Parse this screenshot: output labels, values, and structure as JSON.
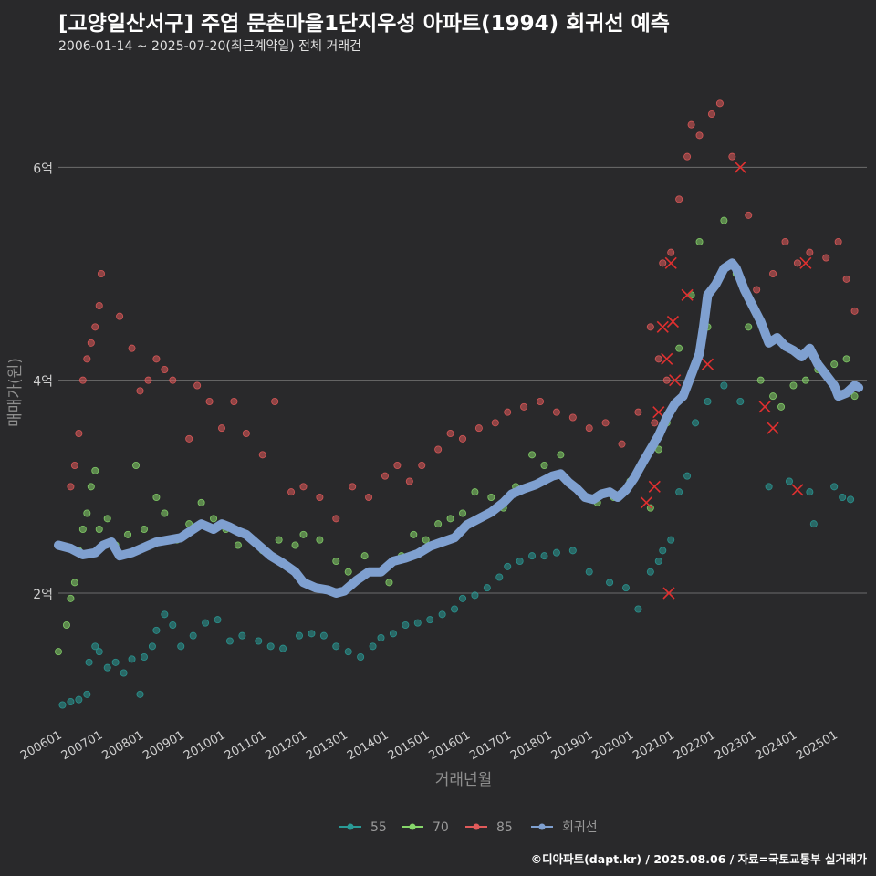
{
  "header": {
    "title": "[고양일산서구] 주엽 문촌마을1단지우성 아파트(1994) 회귀선 예측",
    "subtitle": "2006-01-14 ~ 2025-07-20(최근계약일) 전체 거래건"
  },
  "footer": {
    "credit": "©디아파트(dapt.kr) / 2025.08.06 / 자료=국토교통부 실거래가"
  },
  "chart_data": {
    "type": "scatter",
    "xlabel": "거래년월",
    "ylabel": "매매가(원)",
    "x_ticks": [
      "200601",
      "200701",
      "200801",
      "200901",
      "201001",
      "201101",
      "201201",
      "201301",
      "201401",
      "201501",
      "201601",
      "201701",
      "201801",
      "201901",
      "202001",
      "202101",
      "202201",
      "202301",
      "202401",
      "202501"
    ],
    "y_ticks": [
      {
        "value": 2,
        "label": "2억"
      },
      {
        "value": 4,
        "label": "4억"
      },
      {
        "value": 6,
        "label": "6억"
      }
    ],
    "xlim": [
      2006.0,
      2025.8
    ],
    "ylim": [
      0.8,
      6.8
    ],
    "grid": "horizontal",
    "legend_position": "bottom",
    "colors": {
      "55": "#2a9a96",
      "70": "#86d66a",
      "85": "#e05a5a",
      "회귀선": "#7fa0d0"
    },
    "series": [
      {
        "name": "55",
        "points": [
          [
            2006.1,
            0.95
          ],
          [
            2006.3,
            0.98
          ],
          [
            2006.5,
            1.0
          ],
          [
            2006.7,
            1.05
          ],
          [
            2006.75,
            1.35
          ],
          [
            2006.9,
            1.5
          ],
          [
            2007.0,
            1.45
          ],
          [
            2007.2,
            1.3
          ],
          [
            2007.4,
            1.35
          ],
          [
            2007.6,
            1.25
          ],
          [
            2007.8,
            1.38
          ],
          [
            2008.0,
            1.05
          ],
          [
            2008.1,
            1.4
          ],
          [
            2008.3,
            1.5
          ],
          [
            2008.4,
            1.65
          ],
          [
            2008.6,
            1.8
          ],
          [
            2008.8,
            1.7
          ],
          [
            2009.0,
            1.5
          ],
          [
            2009.3,
            1.6
          ],
          [
            2009.6,
            1.72
          ],
          [
            2009.9,
            1.75
          ],
          [
            2010.2,
            1.55
          ],
          [
            2010.5,
            1.6
          ],
          [
            2010.9,
            1.55
          ],
          [
            2011.2,
            1.5
          ],
          [
            2011.5,
            1.48
          ],
          [
            2011.9,
            1.6
          ],
          [
            2012.2,
            1.62
          ],
          [
            2012.5,
            1.6
          ],
          [
            2012.8,
            1.5
          ],
          [
            2013.1,
            1.45
          ],
          [
            2013.4,
            1.4
          ],
          [
            2013.7,
            1.5
          ],
          [
            2013.9,
            1.58
          ],
          [
            2014.2,
            1.62
          ],
          [
            2014.5,
            1.7
          ],
          [
            2014.8,
            1.72
          ],
          [
            2015.1,
            1.75
          ],
          [
            2015.4,
            1.8
          ],
          [
            2015.7,
            1.85
          ],
          [
            2015.9,
            1.95
          ],
          [
            2016.2,
            1.98
          ],
          [
            2016.5,
            2.05
          ],
          [
            2016.8,
            2.15
          ],
          [
            2017.0,
            2.25
          ],
          [
            2017.3,
            2.3
          ],
          [
            2017.6,
            2.35
          ],
          [
            2017.9,
            2.35
          ],
          [
            2018.2,
            2.38
          ],
          [
            2018.6,
            2.4
          ],
          [
            2019.0,
            2.2
          ],
          [
            2019.5,
            2.1
          ],
          [
            2019.9,
            2.05
          ],
          [
            2020.2,
            1.85
          ],
          [
            2020.5,
            2.2
          ],
          [
            2020.7,
            2.3
          ],
          [
            2020.8,
            2.4
          ],
          [
            2021.0,
            2.5
          ],
          [
            2021.2,
            2.95
          ],
          [
            2021.4,
            3.1
          ],
          [
            2021.6,
            3.6
          ],
          [
            2021.9,
            3.8
          ],
          [
            2022.3,
            3.95
          ],
          [
            2022.7,
            3.8
          ],
          [
            2023.4,
            3.0
          ],
          [
            2023.9,
            3.05
          ],
          [
            2024.4,
            2.95
          ],
          [
            2024.5,
            2.65
          ],
          [
            2025.0,
            3.0
          ],
          [
            2025.2,
            2.9
          ],
          [
            2025.4,
            2.88
          ]
        ]
      },
      {
        "name": "70",
        "points": [
          [
            2006.0,
            1.45
          ],
          [
            2006.2,
            1.7
          ],
          [
            2006.3,
            1.95
          ],
          [
            2006.4,
            2.1
          ],
          [
            2006.5,
            2.4
          ],
          [
            2006.6,
            2.6
          ],
          [
            2006.7,
            2.75
          ],
          [
            2006.8,
            3.0
          ],
          [
            2006.9,
            3.15
          ],
          [
            2007.0,
            2.6
          ],
          [
            2007.2,
            2.7
          ],
          [
            2007.4,
            2.45
          ],
          [
            2007.7,
            2.55
          ],
          [
            2007.9,
            3.2
          ],
          [
            2008.1,
            2.6
          ],
          [
            2008.4,
            2.9
          ],
          [
            2008.6,
            2.75
          ],
          [
            2008.9,
            2.5
          ],
          [
            2009.2,
            2.65
          ],
          [
            2009.5,
            2.85
          ],
          [
            2009.8,
            2.7
          ],
          [
            2010.1,
            2.6
          ],
          [
            2010.4,
            2.45
          ],
          [
            2011.0,
            2.4
          ],
          [
            2011.4,
            2.5
          ],
          [
            2011.8,
            2.45
          ],
          [
            2012.0,
            2.55
          ],
          [
            2012.4,
            2.5
          ],
          [
            2012.8,
            2.3
          ],
          [
            2013.1,
            2.2
          ],
          [
            2013.5,
            2.35
          ],
          [
            2013.8,
            2.2
          ],
          [
            2014.1,
            2.1
          ],
          [
            2014.4,
            2.35
          ],
          [
            2014.7,
            2.55
          ],
          [
            2015.0,
            2.5
          ],
          [
            2015.3,
            2.65
          ],
          [
            2015.6,
            2.7
          ],
          [
            2015.9,
            2.75
          ],
          [
            2016.2,
            2.95
          ],
          [
            2016.6,
            2.9
          ],
          [
            2016.9,
            2.8
          ],
          [
            2017.2,
            3.0
          ],
          [
            2017.6,
            3.3
          ],
          [
            2017.9,
            3.2
          ],
          [
            2018.3,
            3.3
          ],
          [
            2018.8,
            2.95
          ],
          [
            2019.2,
            2.85
          ],
          [
            2019.6,
            2.9
          ],
          [
            2020.0,
            3.05
          ],
          [
            2020.3,
            3.2
          ],
          [
            2020.5,
            2.8
          ],
          [
            2020.7,
            3.35
          ],
          [
            2020.9,
            3.6
          ],
          [
            2021.2,
            4.3
          ],
          [
            2021.5,
            4.8
          ],
          [
            2021.7,
            5.3
          ],
          [
            2021.9,
            4.5
          ],
          [
            2022.3,
            5.5
          ],
          [
            2022.6,
            5.0
          ],
          [
            2022.9,
            4.5
          ],
          [
            2023.2,
            4.0
          ],
          [
            2023.5,
            3.85
          ],
          [
            2023.7,
            3.75
          ],
          [
            2024.0,
            3.95
          ],
          [
            2024.3,
            4.0
          ],
          [
            2024.6,
            4.1
          ],
          [
            2025.0,
            4.15
          ],
          [
            2025.3,
            4.2
          ],
          [
            2025.5,
            3.85
          ]
        ]
      },
      {
        "name": "85",
        "points": [
          [
            2006.3,
            3.0
          ],
          [
            2006.4,
            3.2
          ],
          [
            2006.5,
            3.5
          ],
          [
            2006.6,
            4.0
          ],
          [
            2006.7,
            4.2
          ],
          [
            2006.8,
            4.35
          ],
          [
            2006.9,
            4.5
          ],
          [
            2007.0,
            4.7
          ],
          [
            2007.05,
            5.0
          ],
          [
            2007.5,
            4.6
          ],
          [
            2007.8,
            4.3
          ],
          [
            2008.0,
            3.9
          ],
          [
            2008.2,
            4.0
          ],
          [
            2008.4,
            4.2
          ],
          [
            2008.6,
            4.1
          ],
          [
            2008.8,
            4.0
          ],
          [
            2009.2,
            3.45
          ],
          [
            2009.4,
            3.95
          ],
          [
            2009.7,
            3.8
          ],
          [
            2010.0,
            3.55
          ],
          [
            2010.3,
            3.8
          ],
          [
            2010.6,
            3.5
          ],
          [
            2011.0,
            3.3
          ],
          [
            2011.3,
            3.8
          ],
          [
            2011.7,
            2.95
          ],
          [
            2012.0,
            3.0
          ],
          [
            2012.4,
            2.9
          ],
          [
            2012.8,
            2.7
          ],
          [
            2013.2,
            3.0
          ],
          [
            2013.6,
            2.9
          ],
          [
            2014.0,
            3.1
          ],
          [
            2014.3,
            3.2
          ],
          [
            2014.6,
            3.05
          ],
          [
            2014.9,
            3.2
          ],
          [
            2015.3,
            3.35
          ],
          [
            2015.6,
            3.5
          ],
          [
            2015.9,
            3.45
          ],
          [
            2016.3,
            3.55
          ],
          [
            2016.7,
            3.6
          ],
          [
            2017.0,
            3.7
          ],
          [
            2017.4,
            3.75
          ],
          [
            2017.8,
            3.8
          ],
          [
            2018.2,
            3.7
          ],
          [
            2018.6,
            3.65
          ],
          [
            2019.0,
            3.55
          ],
          [
            2019.4,
            3.6
          ],
          [
            2019.8,
            3.4
          ],
          [
            2020.2,
            3.7
          ],
          [
            2020.5,
            4.5
          ],
          [
            2020.6,
            3.6
          ],
          [
            2020.7,
            4.2
          ],
          [
            2020.8,
            5.1
          ],
          [
            2020.9,
            4.0
          ],
          [
            2021.0,
            5.2
          ],
          [
            2021.2,
            5.7
          ],
          [
            2021.4,
            6.1
          ],
          [
            2021.5,
            6.4
          ],
          [
            2021.7,
            6.3
          ],
          [
            2022.0,
            6.5
          ],
          [
            2022.2,
            6.6
          ],
          [
            2022.5,
            6.1
          ],
          [
            2022.9,
            5.55
          ],
          [
            2023.1,
            4.85
          ],
          [
            2023.5,
            5.0
          ],
          [
            2023.8,
            5.3
          ],
          [
            2024.1,
            5.1
          ],
          [
            2024.4,
            5.2
          ],
          [
            2024.8,
            5.15
          ],
          [
            2025.1,
            5.3
          ],
          [
            2025.3,
            4.95
          ],
          [
            2025.5,
            4.65
          ]
        ]
      }
    ],
    "cancelled_points": [
      [
        2020.4,
        2.85
      ],
      [
        2020.6,
        3.0
      ],
      [
        2020.7,
        3.7
      ],
      [
        2020.8,
        4.5
      ],
      [
        2020.9,
        4.2
      ],
      [
        2021.0,
        5.1
      ],
      [
        2021.05,
        4.55
      ],
      [
        2020.95,
        2.0
      ],
      [
        2021.1,
        4.0
      ],
      [
        2021.4,
        4.8
      ],
      [
        2021.9,
        4.15
      ],
      [
        2022.7,
        6.0
      ],
      [
        2023.3,
        3.75
      ],
      [
        2023.5,
        3.55
      ],
      [
        2024.1,
        2.97
      ],
      [
        2024.3,
        5.1
      ]
    ],
    "regression": {
      "name": "회귀선",
      "points": [
        [
          2006.0,
          2.45
        ],
        [
          2006.3,
          2.42
        ],
        [
          2006.6,
          2.36
        ],
        [
          2006.9,
          2.38
        ],
        [
          2007.1,
          2.45
        ],
        [
          2007.3,
          2.48
        ],
        [
          2007.5,
          2.35
        ],
        [
          2007.8,
          2.38
        ],
        [
          2008.1,
          2.43
        ],
        [
          2008.4,
          2.48
        ],
        [
          2008.7,
          2.5
        ],
        [
          2009.0,
          2.52
        ],
        [
          2009.3,
          2.6
        ],
        [
          2009.5,
          2.65
        ],
        [
          2009.8,
          2.6
        ],
        [
          2010.0,
          2.65
        ],
        [
          2010.2,
          2.62
        ],
        [
          2010.4,
          2.58
        ],
        [
          2010.6,
          2.55
        ],
        [
          2010.9,
          2.45
        ],
        [
          2011.2,
          2.35
        ],
        [
          2011.5,
          2.28
        ],
        [
          2011.8,
          2.2
        ],
        [
          2012.0,
          2.1
        ],
        [
          2012.3,
          2.05
        ],
        [
          2012.6,
          2.03
        ],
        [
          2012.8,
          2.0
        ],
        [
          2013.0,
          2.02
        ],
        [
          2013.3,
          2.12
        ],
        [
          2013.6,
          2.2
        ],
        [
          2013.9,
          2.2
        ],
        [
          2014.2,
          2.3
        ],
        [
          2014.5,
          2.33
        ],
        [
          2014.8,
          2.37
        ],
        [
          2015.1,
          2.44
        ],
        [
          2015.4,
          2.48
        ],
        [
          2015.7,
          2.52
        ],
        [
          2016.0,
          2.64
        ],
        [
          2016.3,
          2.7
        ],
        [
          2016.6,
          2.76
        ],
        [
          2016.9,
          2.85
        ],
        [
          2017.1,
          2.93
        ],
        [
          2017.4,
          2.98
        ],
        [
          2017.7,
          3.02
        ],
        [
          2017.9,
          3.06
        ],
        [
          2018.1,
          3.1
        ],
        [
          2018.3,
          3.12
        ],
        [
          2018.5,
          3.04
        ],
        [
          2018.7,
          2.98
        ],
        [
          2018.9,
          2.9
        ],
        [
          2019.1,
          2.88
        ],
        [
          2019.3,
          2.93
        ],
        [
          2019.5,
          2.95
        ],
        [
          2019.7,
          2.9
        ],
        [
          2019.9,
          2.97
        ],
        [
          2020.1,
          3.08
        ],
        [
          2020.3,
          3.22
        ],
        [
          2020.5,
          3.35
        ],
        [
          2020.7,
          3.48
        ],
        [
          2020.9,
          3.65
        ],
        [
          2021.1,
          3.78
        ],
        [
          2021.3,
          3.85
        ],
        [
          2021.5,
          4.05
        ],
        [
          2021.7,
          4.25
        ],
        [
          2021.8,
          4.5
        ],
        [
          2021.9,
          4.8
        ],
        [
          2022.1,
          4.9
        ],
        [
          2022.3,
          5.05
        ],
        [
          2022.5,
          5.1
        ],
        [
          2022.6,
          5.05
        ],
        [
          2022.8,
          4.85
        ],
        [
          2023.0,
          4.7
        ],
        [
          2023.2,
          4.55
        ],
        [
          2023.4,
          4.35
        ],
        [
          2023.6,
          4.4
        ],
        [
          2023.8,
          4.32
        ],
        [
          2024.0,
          4.28
        ],
        [
          2024.2,
          4.22
        ],
        [
          2024.4,
          4.3
        ],
        [
          2024.6,
          4.15
        ],
        [
          2024.8,
          4.05
        ],
        [
          2025.0,
          3.95
        ],
        [
          2025.1,
          3.85
        ],
        [
          2025.3,
          3.88
        ],
        [
          2025.5,
          3.95
        ],
        [
          2025.6,
          3.93
        ]
      ]
    }
  }
}
